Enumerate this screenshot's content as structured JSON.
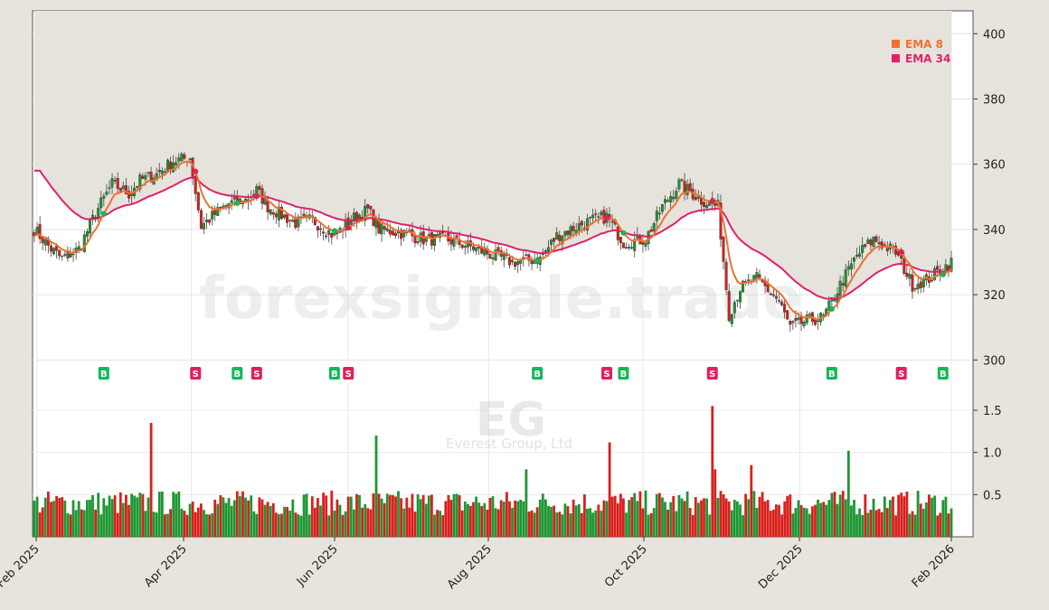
{
  "chart_data": {
    "type": "candlestick",
    "symbol": "EG",
    "company": "Everest Group, Ltd",
    "watermark": "forexsignale.trade",
    "price_axis": {
      "ticks": [
        300,
        320,
        340,
        360,
        380,
        400
      ],
      "range": [
        294,
        407
      ]
    },
    "volume_axis": {
      "ticks": [
        0.5,
        1.0,
        1.5
      ],
      "tick_labels": [
        "0.5",
        "1.0",
        "1.5"
      ],
      "range": [
        0,
        1.65
      ]
    },
    "x_axis": {
      "ticks": [
        "Feb 2025",
        "Apr 2025",
        "Jun 2025",
        "Aug 2025",
        "Oct 2025",
        "Dec 2025",
        "Feb 2026"
      ]
    },
    "legend": [
      {
        "name": "EMA 8",
        "color": "#f07030"
      },
      {
        "name": "EMA 34",
        "color": "#e0206a"
      }
    ],
    "colors": {
      "up": "#1e9632",
      "down": "#d8201c",
      "buy": "#12b85a",
      "sell": "#e0205a"
    },
    "price_path": [
      [
        0,
        340
      ],
      [
        6,
        334
      ],
      [
        10,
        331
      ],
      [
        16,
        334
      ],
      [
        22,
        345
      ],
      [
        28,
        354
      ],
      [
        34,
        351
      ],
      [
        38,
        355
      ],
      [
        44,
        357
      ],
      [
        50,
        361
      ],
      [
        56,
        362
      ],
      [
        60,
        341
      ],
      [
        64,
        344
      ],
      [
        70,
        348
      ],
      [
        76,
        349
      ],
      [
        80,
        352
      ],
      [
        84,
        347
      ],
      [
        88,
        345
      ],
      [
        94,
        342
      ],
      [
        100,
        343
      ],
      [
        108,
        338
      ],
      [
        114,
        343
      ],
      [
        120,
        346
      ],
      [
        124,
        340
      ],
      [
        132,
        339
      ],
      [
        140,
        337
      ],
      [
        148,
        337
      ],
      [
        156,
        335
      ],
      [
        162,
        333
      ],
      [
        172,
        330
      ],
      [
        182,
        331
      ],
      [
        188,
        338
      ],
      [
        198,
        342
      ],
      [
        206,
        344
      ],
      [
        212,
        336
      ],
      [
        220,
        337
      ],
      [
        226,
        347
      ],
      [
        232,
        354
      ],
      [
        240,
        349
      ],
      [
        246,
        347
      ],
      [
        250,
        314
      ],
      [
        254,
        322
      ],
      [
        260,
        325
      ],
      [
        268,
        318
      ],
      [
        272,
        310
      ],
      [
        278,
        312
      ],
      [
        284,
        313
      ],
      [
        290,
        323
      ],
      [
        296,
        332
      ],
      [
        302,
        337
      ],
      [
        310,
        333
      ],
      [
        316,
        323
      ],
      [
        322,
        325
      ],
      [
        330,
        330
      ]
    ],
    "signals": [
      {
        "label": "B",
        "i": 25
      },
      {
        "label": "S",
        "i": 58
      },
      {
        "label": "B",
        "i": 73
      },
      {
        "label": "S",
        "i": 80
      },
      {
        "label": "B",
        "i": 108
      },
      {
        "label": "S",
        "i": 113
      },
      {
        "label": "B",
        "i": 181
      },
      {
        "label": "S",
        "i": 206
      },
      {
        "label": "B",
        "i": 212
      },
      {
        "label": "S",
        "i": 244
      },
      {
        "label": "B",
        "i": 287
      },
      {
        "label": "S",
        "i": 312
      },
      {
        "label": "B",
        "i": 327
      }
    ]
  }
}
